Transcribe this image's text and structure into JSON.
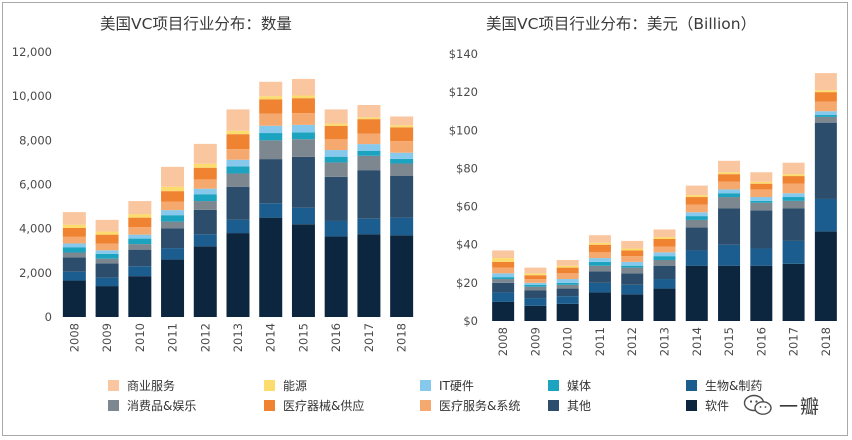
{
  "colors": {
    "软件": "#0c2640",
    "其他": "#2c4e6c",
    "生物&制药": "#1b5d8e",
    "医疗服务&系统": "#f6a96f",
    "医疗器械&供应": "#f08332",
    "消费品&娱乐": "#7d8790",
    "媒体": "#1ba3c0",
    "IT硬件": "#86c9ec",
    "能源": "#fbdc6d",
    "商业服务": "#f9c6a0"
  },
  "legend": [
    {
      "key": "商业服务",
      "label": "商业服务"
    },
    {
      "key": "能源",
      "label": "能源"
    },
    {
      "key": "IT硬件",
      "label": "IT硬件"
    },
    {
      "key": "媒体",
      "label": "媒体"
    },
    {
      "key": "生物&制药",
      "label": "生物&制药"
    },
    {
      "key": "消费品&娱乐",
      "label": "消费品&娱乐"
    },
    {
      "key": "医疗器械&供应",
      "label": "医疗器械&供应"
    },
    {
      "key": "医疗服务&系统",
      "label": "医疗服务&系统"
    },
    {
      "key": "其他",
      "label": "其他"
    },
    {
      "key": "软件",
      "label": "软件"
    }
  ],
  "watermark": {
    "text": "一瓣"
  },
  "chart_data": [
    {
      "type": "bar",
      "stacked": true,
      "title": "美国VC项目行业分布：数量",
      "xlabel": "",
      "ylabel": "",
      "ylim": [
        0,
        12000
      ],
      "yticks": [
        "0",
        "2,000",
        "4,000",
        "6,000",
        "8,000",
        "10,000",
        "12,000"
      ],
      "categories": [
        "2008",
        "2009",
        "2010",
        "2011",
        "2012",
        "2013",
        "2014",
        "2015",
        "2016",
        "2017",
        "2018"
      ],
      "series": [
        {
          "name": "软件",
          "values": [
            1650,
            1400,
            1850,
            2600,
            3200,
            3800,
            4500,
            4200,
            3650,
            3750,
            3700
          ]
        },
        {
          "name": "生物&制药",
          "values": [
            400,
            380,
            450,
            520,
            550,
            600,
            650,
            750,
            700,
            700,
            800
          ]
        },
        {
          "name": "其他",
          "values": [
            650,
            650,
            750,
            900,
            1100,
            1500,
            2000,
            2300,
            2000,
            2200,
            1900
          ]
        },
        {
          "name": "消费品&娱乐",
          "values": [
            220,
            210,
            250,
            300,
            400,
            600,
            850,
            800,
            650,
            650,
            550
          ]
        },
        {
          "name": "媒体",
          "values": [
            240,
            220,
            250,
            290,
            310,
            320,
            330,
            310,
            260,
            230,
            210
          ]
        },
        {
          "name": "IT硬件",
          "values": [
            170,
            160,
            180,
            230,
            250,
            300,
            330,
            340,
            300,
            300,
            280
          ]
        },
        {
          "name": "医疗服务&系统",
          "values": [
            300,
            300,
            340,
            390,
            420,
            480,
            550,
            530,
            500,
            480,
            520
          ]
        },
        {
          "name": "医疗器械&供应",
          "values": [
            400,
            410,
            430,
            470,
            530,
            680,
            650,
            680,
            600,
            650,
            630
          ]
        },
        {
          "name": "能源",
          "values": [
            150,
            140,
            160,
            200,
            180,
            150,
            140,
            120,
            100,
            80,
            90
          ]
        },
        {
          "name": "商业服务",
          "values": [
            570,
            530,
            590,
            900,
            900,
            970,
            650,
            750,
            640,
            560,
            400
          ]
        }
      ]
    },
    {
      "type": "bar",
      "stacked": true,
      "title": "美国VC项目行业分布：美元（Billion）",
      "xlabel": "",
      "ylabel": "",
      "ylim": [
        0,
        140
      ],
      "yticks": [
        "$0",
        "$20",
        "$40",
        "$60",
        "$80",
        "$100",
        "$120",
        "$140"
      ],
      "categories": [
        "2008",
        "2009",
        "2010",
        "2011",
        "2012",
        "2013",
        "2014",
        "2015",
        "2016",
        "2017",
        "2018"
      ],
      "series": [
        {
          "name": "软件",
          "values": [
            10,
            8,
            9,
            15,
            14,
            17,
            29,
            29,
            29,
            30,
            47
          ]
        },
        {
          "name": "生物&制药",
          "values": [
            5,
            4,
            4,
            5,
            5,
            5,
            8,
            11,
            9,
            12,
            17
          ]
        },
        {
          "name": "其他",
          "values": [
            5,
            4,
            4,
            6,
            6,
            7,
            12,
            19,
            20,
            17,
            40
          ]
        },
        {
          "name": "消费品&娱乐",
          "values": [
            2,
            2,
            2,
            3,
            3,
            3,
            4,
            6,
            4,
            4,
            3
          ]
        },
        {
          "name": "媒体",
          "values": [
            1,
            1,
            1,
            2,
            1,
            2,
            2,
            2,
            1,
            2,
            1
          ]
        },
        {
          "name": "IT硬件",
          "values": [
            2,
            1,
            2,
            2,
            2,
            2,
            2,
            2,
            2,
            2,
            2
          ]
        },
        {
          "name": "医疗服务&系统",
          "values": [
            3,
            2,
            3,
            3,
            3,
            3,
            4,
            4,
            4,
            5,
            5
          ]
        },
        {
          "name": "医疗器械&供应",
          "values": [
            3,
            2,
            3,
            4,
            3,
            4,
            4,
            4,
            3,
            4,
            5
          ]
        },
        {
          "name": "能源",
          "values": [
            2,
            1,
            1,
            1,
            1,
            1,
            1,
            1,
            1,
            1,
            1
          ]
        },
        {
          "name": "商业服务",
          "values": [
            4,
            3,
            3,
            4,
            4,
            4,
            5,
            6,
            5,
            6,
            9
          ]
        }
      ]
    }
  ]
}
